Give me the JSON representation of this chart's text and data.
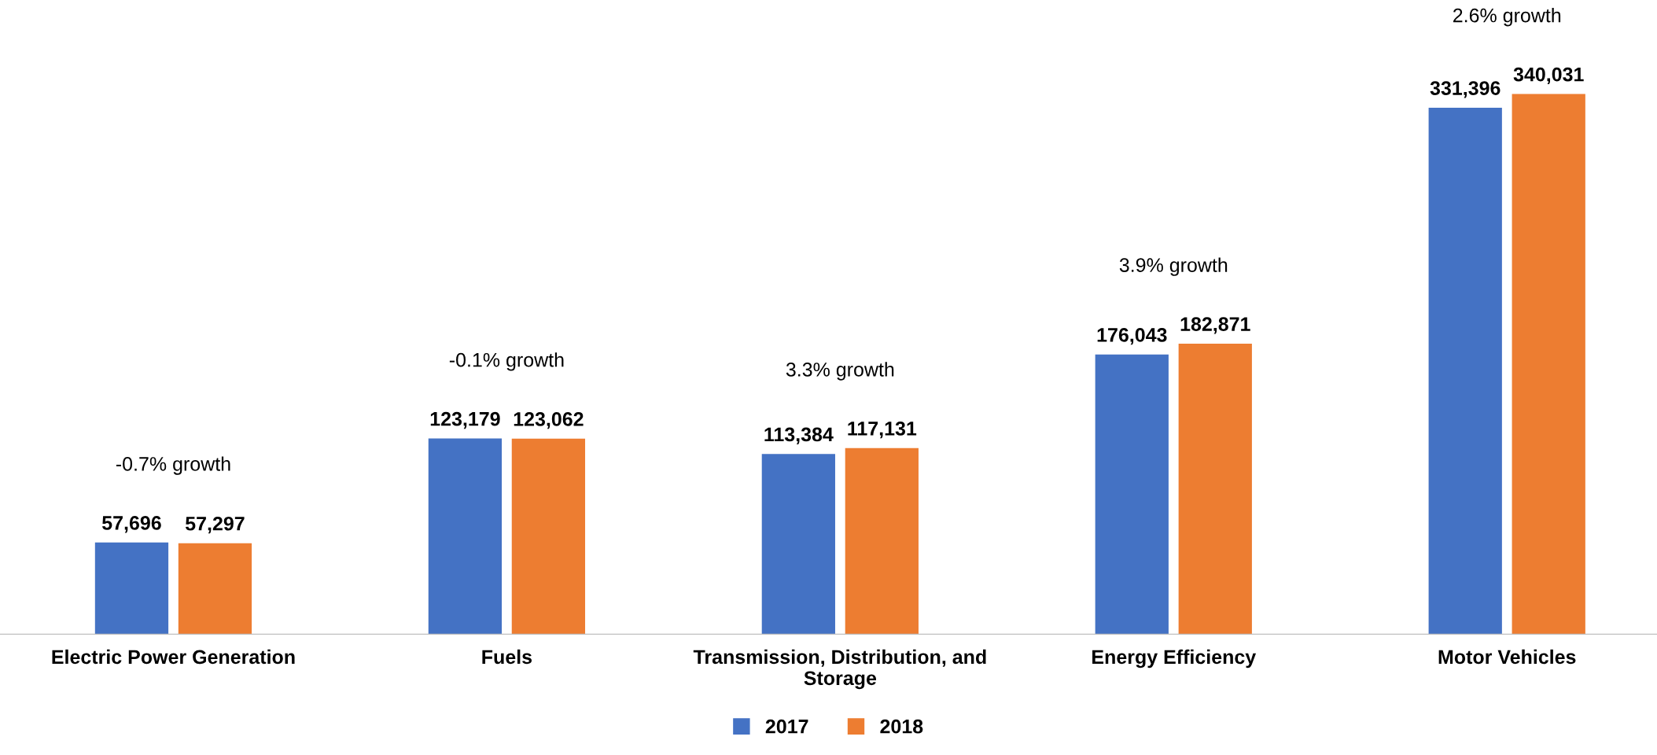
{
  "chart_data": {
    "type": "bar",
    "categories": [
      "Electric Power Generation",
      "Fuels",
      "Transmission, Distribution, and\nStorage",
      "Energy Efficiency",
      "Motor Vehicles"
    ],
    "series": [
      {
        "name": "2017",
        "color": "#4472c4",
        "values": [
          57696,
          123179,
          113384,
          176043,
          331396
        ],
        "value_labels": [
          "57,696",
          "123,179",
          "113,384",
          "176,043",
          "331,396"
        ]
      },
      {
        "name": "2018",
        "color": "#ed7d31",
        "values": [
          57297,
          123062,
          117131,
          182871,
          340031
        ],
        "value_labels": [
          "57,297",
          "123,062",
          "117,131",
          "182,871",
          "340,031"
        ]
      }
    ],
    "legend": "bottom",
    "grid": false,
    "annotations": [
      "-0.7% growth",
      "-0.1% growth",
      "3.3% growth",
      "3.9% growth",
      "2.6% growth"
    ]
  }
}
